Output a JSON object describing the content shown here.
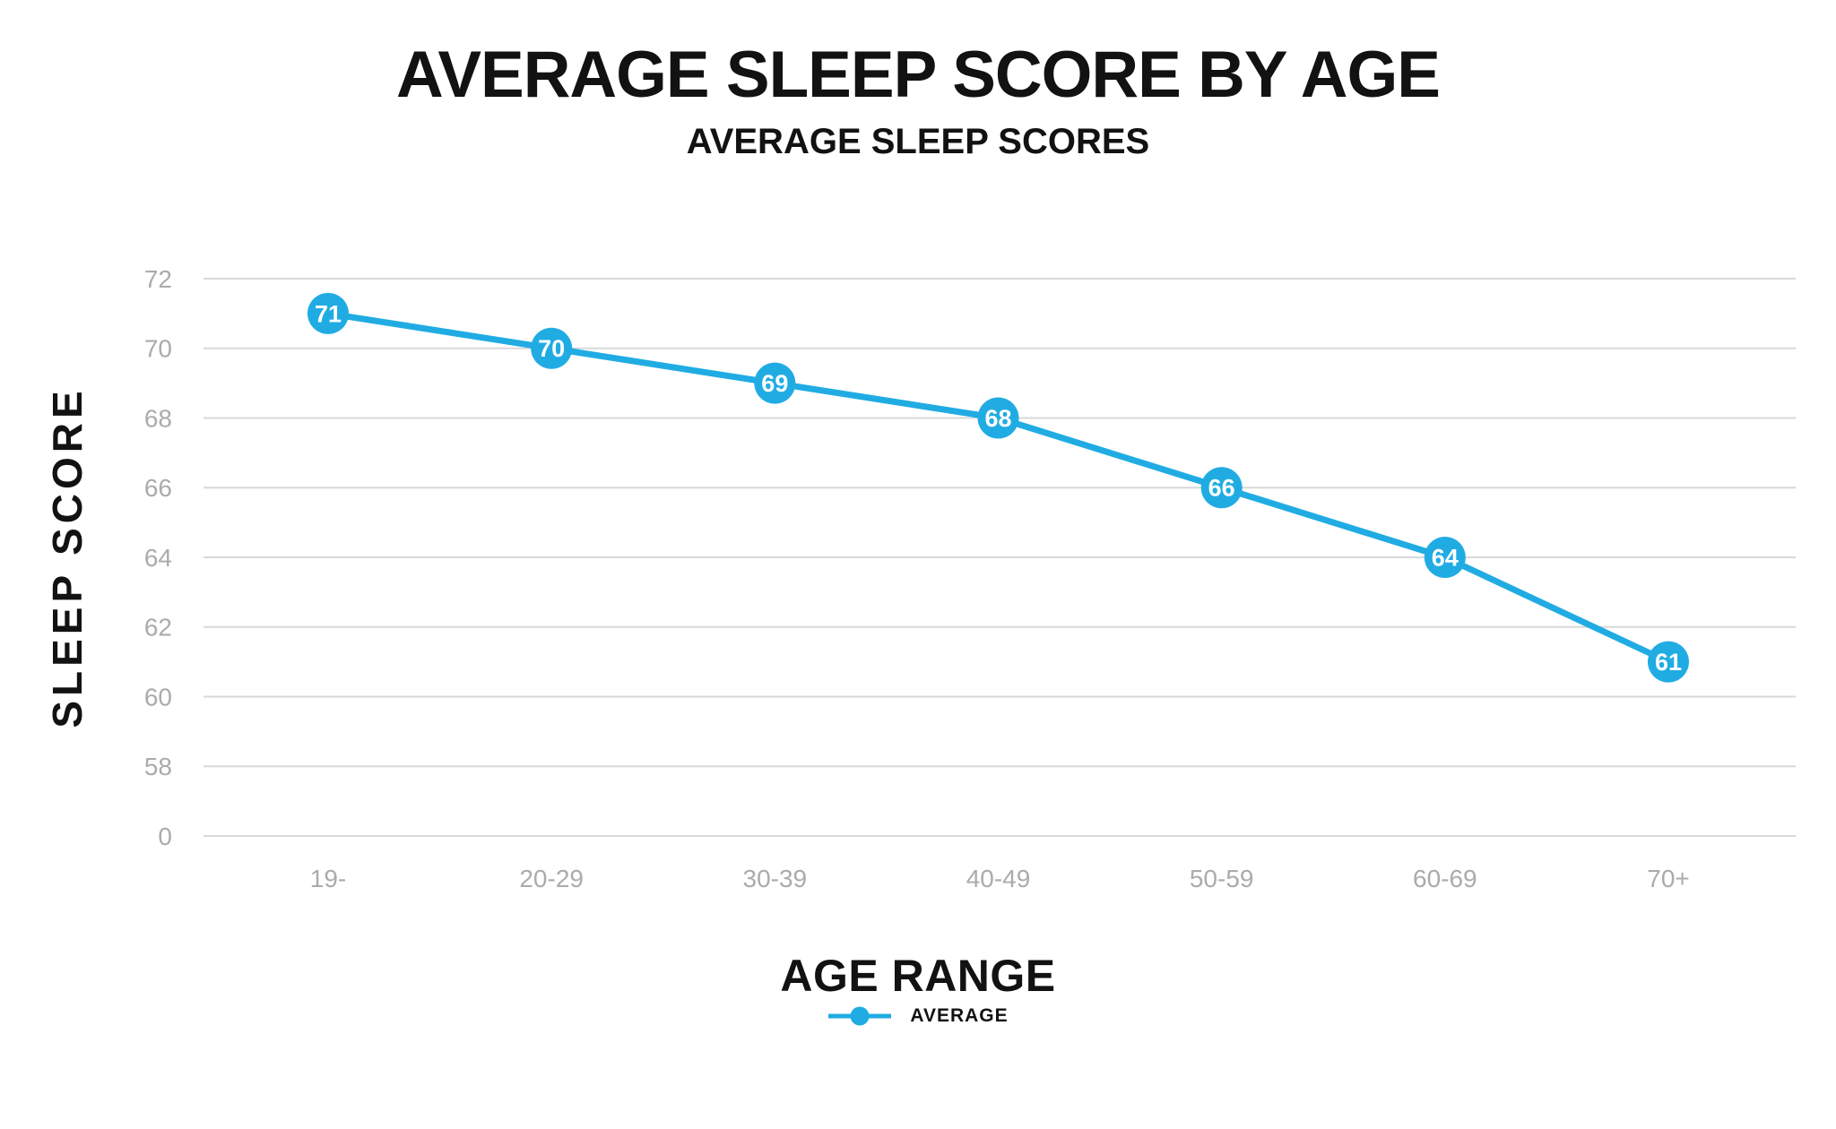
{
  "title": "AVERAGE SLEEP SCORE BY AGE",
  "subtitle": "AVERAGE SLEEP SCORES",
  "legend": {
    "label": "AVERAGE"
  },
  "colors": {
    "accent": "#20ACE3",
    "grid": "#D8D8D8",
    "tick_label": "#ABABAB",
    "text": "#121212",
    "marker_label": "#FFFFFF",
    "background": "#FFFFFF"
  },
  "chart_data": {
    "type": "line",
    "title": "AVERAGE SLEEP SCORE BY AGE",
    "subtitle": "AVERAGE SLEEP SCORES",
    "categories": [
      "19-",
      "20-29",
      "30-39",
      "40-49",
      "50-59",
      "60-69",
      "70+"
    ],
    "series": [
      {
        "name": "AVERAGE",
        "values": [
          71,
          70,
          69,
          68,
          66,
          64,
          61
        ]
      }
    ],
    "xlabel": "AGE RANGE",
    "ylabel": "SLEEP SCORE",
    "ytick_labels": [
      "72",
      "70",
      "68",
      "66",
      "64",
      "62",
      "60",
      "58",
      "0"
    ],
    "ylim_shown": [
      58,
      72
    ],
    "axis_note": "broken y-axis: 0 gridline drawn one tick step below 58",
    "grid": true,
    "point_labels": true,
    "legend_position": "bottom"
  }
}
